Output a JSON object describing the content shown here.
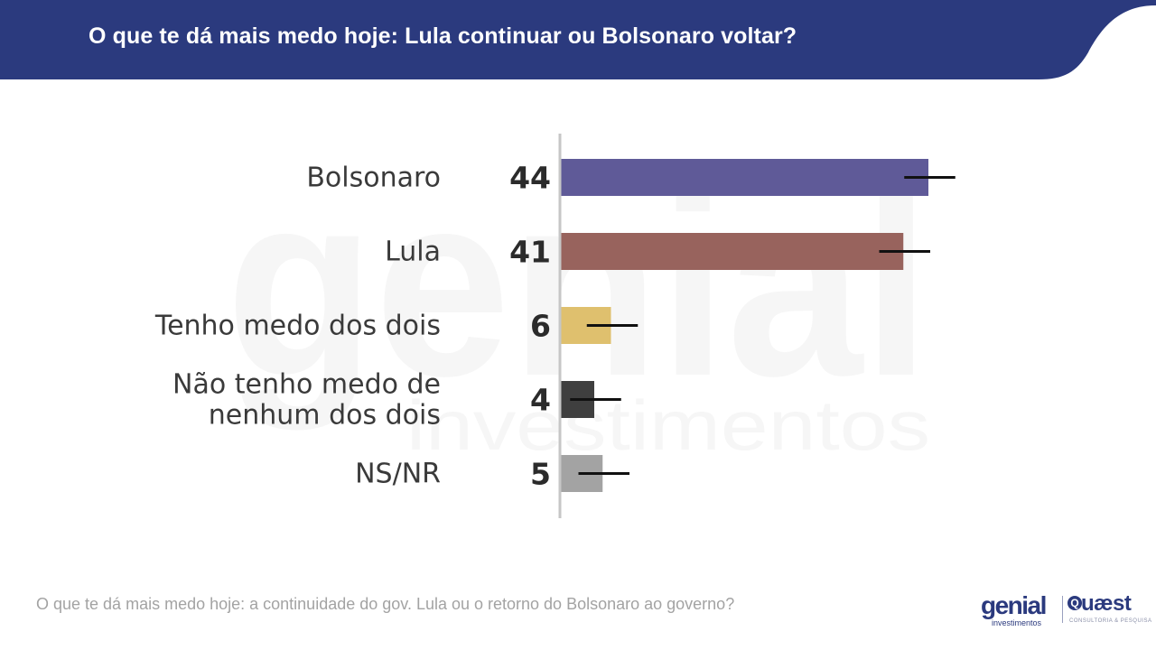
{
  "header": {
    "title": "O que te dá mais medo hoje: Lula continuar ou Bolsonaro voltar?",
    "color": "#2b3a7e"
  },
  "watermark": {
    "word": "genial",
    "subword": "investimentos"
  },
  "chart_data": {
    "type": "bar",
    "orientation": "horizontal",
    "title": "O que te dá mais medo hoje: Lula continuar ou Bolsonaro voltar?",
    "categories": [
      [
        "Bolsonaro"
      ],
      [
        "Lula"
      ],
      [
        "Tenho medo dos dois"
      ],
      [
        "Não tenho medo de",
        "nenhum dos dois"
      ],
      [
        "NS/NR"
      ]
    ],
    "values": [
      44,
      41,
      6,
      4,
      5
    ],
    "value_labels": [
      "44",
      "41",
      "6",
      "4",
      "5"
    ],
    "colors": [
      "#5f5a98",
      "#98635d",
      "#dfc06e",
      "#3f3f3f",
      "#a3a3a3"
    ],
    "error_margin": 3,
    "xlim": [
      0,
      44
    ],
    "grid": false,
    "legend": "none"
  },
  "footer": {
    "question": "O que te dá mais medo hoje: a continuidade do gov. Lula ou o retorno do Bolsonaro ao governo?"
  },
  "logos": {
    "genial": "genial",
    "genial_sub": "investimentos",
    "quaest_badge": "Q",
    "quaest": "uæst",
    "quaest_sub": "CONSULTORIA & PESQUISA"
  }
}
